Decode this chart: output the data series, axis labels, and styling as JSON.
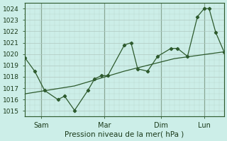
{
  "bg_color": "#cceee8",
  "grid_color": "#b0c8c0",
  "line_color": "#2d5a2d",
  "ylabel": "Pression niveau de la mer( hPa )",
  "ylim": [
    1014.5,
    1024.5
  ],
  "yticks": [
    1015,
    1016,
    1017,
    1018,
    1019,
    1020,
    1021,
    1022,
    1023,
    1024
  ],
  "xlim": [
    0,
    120
  ],
  "day_labels": [
    "Sam",
    "Mar",
    "Dim",
    "Lun"
  ],
  "day_positions": [
    10,
    48,
    82,
    108
  ],
  "vline_positions": [
    10,
    48,
    82,
    108
  ],
  "line1_x": [
    0,
    6,
    12,
    20,
    24,
    30,
    38,
    42,
    46,
    50,
    60,
    64,
    68,
    74,
    80,
    88,
    92,
    98,
    104,
    108,
    111,
    115,
    120
  ],
  "line1_y": [
    1019.7,
    1018.5,
    1016.8,
    1016.0,
    1016.3,
    1015.05,
    1016.8,
    1017.8,
    1018.1,
    1018.1,
    1020.8,
    1021.0,
    1018.7,
    1018.5,
    1019.8,
    1020.5,
    1020.5,
    1019.8,
    1023.3,
    1024.0,
    1024.0,
    1021.9,
    1020.2
  ],
  "line2_x": [
    0,
    30,
    60,
    90,
    120
  ],
  "line2_y": [
    1016.5,
    1017.2,
    1018.5,
    1019.6,
    1020.2
  ]
}
